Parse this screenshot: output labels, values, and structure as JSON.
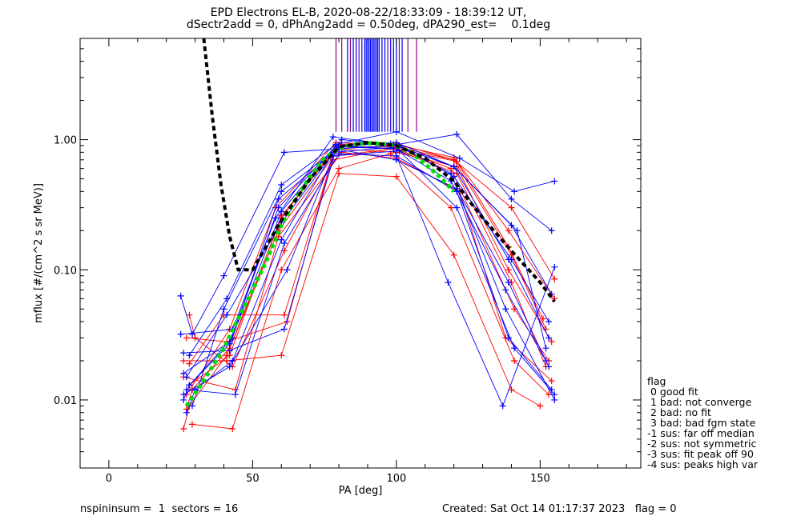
{
  "chart_data": {
    "type": "line",
    "title": "EPD Electrons EL-B, 2020-08-22/18:33:09 - 18:39:12 UT,",
    "subtitle": "dSectr2add = 0, dPhAng2add = 0.50deg, dPA290_est=    0.1deg",
    "xlabel": "PA [deg]",
    "ylabel": "mflux [#/(cm^2 s sr MeV)]",
    "xlim": [
      -10,
      185
    ],
    "ylim": [
      0.003,
      6.0
    ],
    "yscale": "log",
    "xticks": [
      0,
      50,
      100,
      150
    ],
    "xtick_labels": [
      "0",
      "50",
      "100",
      "150"
    ],
    "yticks": [
      0.01,
      0.1,
      1.0
    ],
    "ytick_labels": [
      "0.01",
      "0.10",
      "1.00"
    ],
    "grid": false,
    "legend_position": "lower-right-outside",
    "colors": {
      "red": "#ff0000",
      "blue": "#0000ff",
      "black": "#000000",
      "green": "#00dd00",
      "purple": "#880088"
    },
    "series_red": [
      {
        "x": [
          27,
          29,
          42,
          60,
          79,
          100,
          120,
          140,
          152
        ],
        "y": [
          0.0085,
          0.012,
          0.025,
          0.25,
          0.88,
          0.88,
          0.7,
          0.13,
          0.035
        ]
      },
      {
        "x": [
          26,
          28,
          41,
          59,
          80,
          100,
          121,
          139,
          154
        ],
        "y": [
          0.006,
          0.009,
          0.022,
          0.2,
          0.85,
          0.8,
          0.62,
          0.1,
          0.028
        ]
      },
      {
        "x": [
          28,
          30,
          43,
          61,
          78,
          99,
          119,
          141,
          153
        ],
        "y": [
          0.045,
          0.03,
          0.018,
          0.14,
          0.7,
          0.86,
          0.6,
          0.05,
          0.02
        ]
      },
      {
        "x": [
          26,
          41,
          60,
          80,
          100,
          120,
          140,
          150
        ],
        "y": [
          0.02,
          0.02,
          0.022,
          0.55,
          0.52,
          0.13,
          0.012,
          0.009
        ]
      },
      {
        "x": [
          27,
          42,
          58,
          79,
          101,
          120,
          139,
          155
        ],
        "y": [
          0.011,
          0.035,
          0.3,
          0.95,
          0.9,
          0.73,
          0.2,
          0.06
        ]
      },
      {
        "x": [
          28,
          40,
          61,
          78,
          99,
          121,
          140,
          152
        ],
        "y": [
          0.019,
          0.045,
          0.045,
          0.75,
          0.85,
          0.55,
          0.08,
          0.018
        ]
      },
      {
        "x": [
          26,
          44,
          59,
          81,
          100,
          122,
          138,
          154
        ],
        "y": [
          0.015,
          0.012,
          0.18,
          0.8,
          0.72,
          0.4,
          0.03,
          0.014
        ]
      },
      {
        "x": [
          29,
          43,
          60,
          80,
          98,
          119,
          141,
          153
        ],
        "y": [
          0.0065,
          0.006,
          0.1,
          0.6,
          0.78,
          0.3,
          0.02,
          0.011
        ]
      },
      {
        "x": [
          27,
          41,
          62,
          79,
          100,
          120,
          140,
          155
        ],
        "y": [
          0.03,
          0.028,
          0.04,
          0.92,
          0.93,
          0.7,
          0.3,
          0.085
        ]
      },
      {
        "x": [
          28,
          42,
          60,
          80,
          101,
          121,
          139,
          151
        ],
        "y": [
          0.013,
          0.022,
          0.26,
          0.9,
          0.84,
          0.68,
          0.15,
          0.042
        ]
      }
    ],
    "series_blue": [
      {
        "x": [
          26,
          28,
          42,
          60,
          79,
          100,
          120,
          139,
          153
        ],
        "y": [
          0.01,
          0.013,
          0.027,
          0.28,
          0.9,
          0.95,
          0.62,
          0.12,
          0.03
        ]
      },
      {
        "x": [
          25,
          29,
          40,
          61,
          80,
          98,
          121,
          140,
          154
        ],
        "y": [
          0.063,
          0.032,
          0.09,
          0.8,
          0.85,
          0.9,
          1.1,
          0.35,
          0.2
        ]
      },
      {
        "x": [
          27,
          30,
          43,
          60,
          78,
          101,
          119,
          138,
          155
        ],
        "y": [
          0.008,
          0.012,
          0.02,
          0.17,
          0.8,
          0.88,
          0.55,
          0.05,
          0.01
        ]
      },
      {
        "x": [
          26,
          42,
          59,
          81,
          99,
          120,
          142,
          152
        ],
        "y": [
          0.016,
          0.028,
          0.3,
          1.0,
          0.92,
          0.62,
          0.2,
          0.025
        ]
      },
      {
        "x": [
          28,
          41,
          60,
          79,
          100,
          122,
          141,
          155
        ],
        "y": [
          0.022,
          0.06,
          0.45,
          0.92,
          1.15,
          0.72,
          0.4,
          0.48
        ]
      },
      {
        "x": [
          27,
          44,
          61,
          80,
          100,
          121,
          139,
          154
        ],
        "y": [
          0.012,
          0.011,
          0.16,
          0.78,
          0.75,
          0.4,
          0.03,
          0.012
        ]
      },
      {
        "x": [
          25,
          43,
          58,
          78,
          101,
          120,
          140,
          153
        ],
        "y": [
          0.032,
          0.035,
          0.25,
          1.05,
          0.9,
          0.52,
          0.12,
          0.04
        ]
      },
      {
        "x": [
          29,
          40,
          60,
          80,
          99,
          118,
          137,
          155
        ],
        "y": [
          0.009,
          0.05,
          0.4,
          0.88,
          0.85,
          0.08,
          0.009,
          0.105
        ]
      },
      {
        "x": [
          26,
          42,
          61,
          79,
          100,
          121,
          139,
          153
        ],
        "y": [
          0.023,
          0.024,
          0.035,
          0.85,
          0.7,
          0.42,
          0.08,
          0.018
        ]
      },
      {
        "x": [
          28,
          43,
          59,
          81,
          98,
          120,
          140,
          154
        ],
        "y": [
          0.013,
          0.03,
          0.35,
          0.9,
          0.93,
          0.62,
          0.22,
          0.065
        ]
      },
      {
        "x": [
          27,
          41,
          60,
          80,
          100,
          119,
          138,
          152
        ],
        "y": [
          0.015,
          0.045,
          0.23,
          0.9,
          0.85,
          0.48,
          0.07,
          0.02
        ]
      },
      {
        "x": [
          26,
          42,
          62,
          78,
          101,
          121,
          141,
          155
        ],
        "y": [
          0.011,
          0.018,
          0.1,
          0.75,
          0.82,
          0.3,
          0.025,
          0.011
        ]
      }
    ],
    "fit_black": {
      "x": [
        33,
        36,
        39,
        42,
        45,
        50,
        60,
        70,
        80,
        90,
        100,
        110,
        120,
        130,
        140,
        150,
        155
      ],
      "y": [
        6.0,
        1.5,
        0.45,
        0.18,
        0.1,
        0.1,
        0.24,
        0.5,
        0.88,
        0.95,
        0.9,
        0.72,
        0.48,
        0.25,
        0.14,
        0.08,
        0.057
      ]
    },
    "fit_green": {
      "x": [
        27,
        32,
        36,
        40,
        44,
        50,
        55,
        60,
        65,
        70,
        75,
        80,
        85,
        90,
        95,
        100,
        105,
        110,
        115,
        120
      ],
      "y": [
        0.009,
        0.013,
        0.018,
        0.025,
        0.038,
        0.07,
        0.12,
        0.22,
        0.35,
        0.52,
        0.72,
        0.86,
        0.92,
        0.94,
        0.93,
        0.9,
        0.8,
        0.65,
        0.52,
        0.4
      ]
    },
    "flag_markers_x": [
      79,
      81,
      83,
      84,
      85,
      86,
      87,
      88,
      89,
      89.5,
      90,
      90.5,
      91,
      91.5,
      92,
      92.5,
      93,
      93.5,
      94,
      95,
      96,
      97,
      98,
      99,
      100,
      101,
      102,
      104,
      107
    ],
    "flag_markers_color": [
      "purple",
      "purple",
      "blue",
      "purple",
      "blue",
      "blue",
      "purple",
      "blue",
      "blue",
      "blue",
      "blue",
      "blue",
      "blue",
      "blue",
      "blue",
      "blue",
      "blue",
      "blue",
      "blue",
      "blue",
      "blue",
      "purple",
      "blue",
      "blue",
      "blue",
      "purple",
      "blue",
      "purple",
      "purple"
    ],
    "flag_marker_bottom_y": 1.15,
    "legend": {
      "title": "flag",
      "items": [
        " 0 good fit",
        " 1 bad: not converge",
        " 2 bad: no fit",
        " 3 bad: bad fgm state",
        "-1 sus: far off median",
        "-2 sus: not symmetric",
        "-3 sus: fit peak off 90",
        "-4 sus: peaks high var"
      ]
    }
  },
  "footer": {
    "left": "nspininsum =  1  sectors = 16",
    "right": "Created: Sat Oct 14 01:17:37 2023   flag = 0"
  }
}
